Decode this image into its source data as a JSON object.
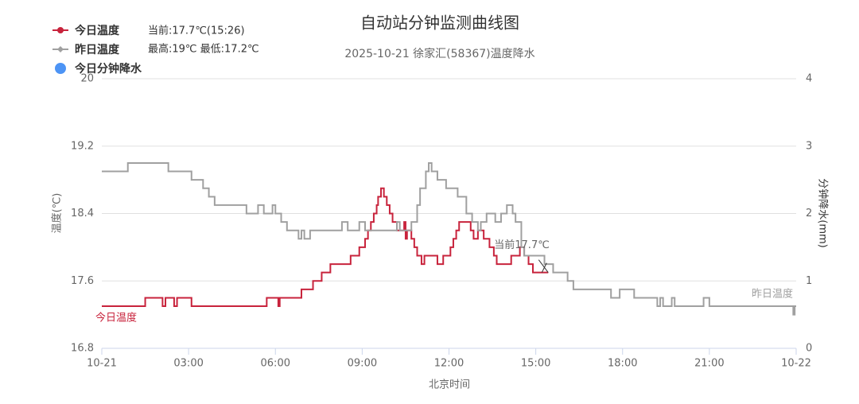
{
  "chart_data": {
    "type": "line",
    "step": true,
    "title": "自动站分钟监测曲线图",
    "subtitle": "2025-10-21 徐家汇(58367)温度降水",
    "x_label": "北京时间",
    "y_label": "温度(℃)",
    "y2_label": "分钟降水(mm)",
    "xlim": [
      0,
      24
    ],
    "xticks": [
      {
        "value": 0,
        "label": "10-21"
      },
      {
        "value": 3,
        "label": "03:00"
      },
      {
        "value": 6,
        "label": "06:00"
      },
      {
        "value": 9,
        "label": "09:00"
      },
      {
        "value": 12,
        "label": "12:00"
      },
      {
        "value": 15,
        "label": "15:00"
      },
      {
        "value": 18,
        "label": "18:00"
      },
      {
        "value": 21,
        "label": "21:00"
      },
      {
        "value": 24,
        "label": "10-22"
      }
    ],
    "ylim": [
      16.8,
      20
    ],
    "yticks": [
      16.8,
      17.6,
      18.4,
      19.2,
      20
    ],
    "y2lim": [
      0,
      4
    ],
    "y2ticks": [
      0,
      1,
      2,
      3,
      4
    ],
    "grid": true,
    "legend": "top-left",
    "legend_notes": [
      "当前:17.7℃(15:26)",
      "最高:19℃ 最低:17.2℃"
    ],
    "end_labels": [
      "今日温度",
      "昨日温度"
    ],
    "annotation": "当前17.7℃",
    "series": [
      {
        "name": "今日温度",
        "color": "#c8233c",
        "x": [
          0,
          1.5,
          2.1,
          2.2,
          2.5,
          2.6,
          3.1,
          5.7,
          6.1,
          6.15,
          6.9,
          7.3,
          7.6,
          7.9,
          8.6,
          8.9,
          9.1,
          9.2,
          9.3,
          9.4,
          9.5,
          9.55,
          9.65,
          9.75,
          9.85,
          9.95,
          10.05,
          10.2,
          10.45,
          10.5,
          10.55,
          10.7,
          10.8,
          10.9,
          11.05,
          11.15,
          11.6,
          11.8,
          12.05,
          12.15,
          12.25,
          12.35,
          12.75,
          12.85,
          13.0,
          13.2,
          13.4,
          13.55,
          13.65,
          14.15,
          14.45,
          14.6,
          14.75,
          14.9,
          15.43
        ],
        "values": [
          17.3,
          17.4,
          17.3,
          17.4,
          17.3,
          17.4,
          17.3,
          17.4,
          17.3,
          17.4,
          17.5,
          17.6,
          17.7,
          17.8,
          17.9,
          18.0,
          18.1,
          18.2,
          18.3,
          18.4,
          18.5,
          18.6,
          18.7,
          18.6,
          18.5,
          18.4,
          18.3,
          18.2,
          18.3,
          18.1,
          18.2,
          18.1,
          18.0,
          17.9,
          17.8,
          17.9,
          17.8,
          17.9,
          18.0,
          18.1,
          18.2,
          18.3,
          18.2,
          18.1,
          18.2,
          18.1,
          18.0,
          17.9,
          17.8,
          17.9,
          18.0,
          17.9,
          17.8,
          17.7,
          17.7
        ]
      },
      {
        "name": "昨日温度",
        "color": "#a0a0a0",
        "x": [
          0,
          0.9,
          2.3,
          3.1,
          3.5,
          3.7,
          3.9,
          5.0,
          5.4,
          5.6,
          5.9,
          6.0,
          6.2,
          6.4,
          6.8,
          6.9,
          7.0,
          7.2,
          8.3,
          8.5,
          8.9,
          9.1,
          10.2,
          10.3,
          10.7,
          10.9,
          11.0,
          11.2,
          11.3,
          11.4,
          11.6,
          11.9,
          12.3,
          12.6,
          12.8,
          13.0,
          13.1,
          13.3,
          13.6,
          13.8,
          14.0,
          14.2,
          14.3,
          14.5,
          14.6,
          15.3,
          15.6,
          16.1,
          16.3,
          17.6,
          17.9,
          18.4,
          19.2,
          19.3,
          19.4,
          19.7,
          19.8,
          20.8,
          21.0,
          23.9,
          23.95,
          24
        ],
        "values": [
          18.9,
          19.0,
          18.9,
          18.8,
          18.7,
          18.6,
          18.5,
          18.4,
          18.5,
          18.4,
          18.5,
          18.4,
          18.3,
          18.2,
          18.1,
          18.2,
          18.1,
          18.2,
          18.3,
          18.2,
          18.3,
          18.2,
          18.3,
          18.2,
          18.3,
          18.5,
          18.7,
          18.9,
          19.0,
          18.9,
          18.8,
          18.7,
          18.6,
          18.4,
          18.3,
          18.2,
          18.3,
          18.4,
          18.3,
          18.4,
          18.5,
          18.4,
          18.3,
          18.0,
          17.9,
          17.8,
          17.7,
          17.6,
          17.5,
          17.4,
          17.5,
          17.4,
          17.3,
          17.4,
          17.3,
          17.4,
          17.3,
          17.4,
          17.3,
          17.2,
          17.3,
          17.3
        ]
      },
      {
        "name": "今日分钟降水",
        "color": "#4d94f5",
        "axis": "y2",
        "x": [],
        "values": []
      }
    ]
  }
}
